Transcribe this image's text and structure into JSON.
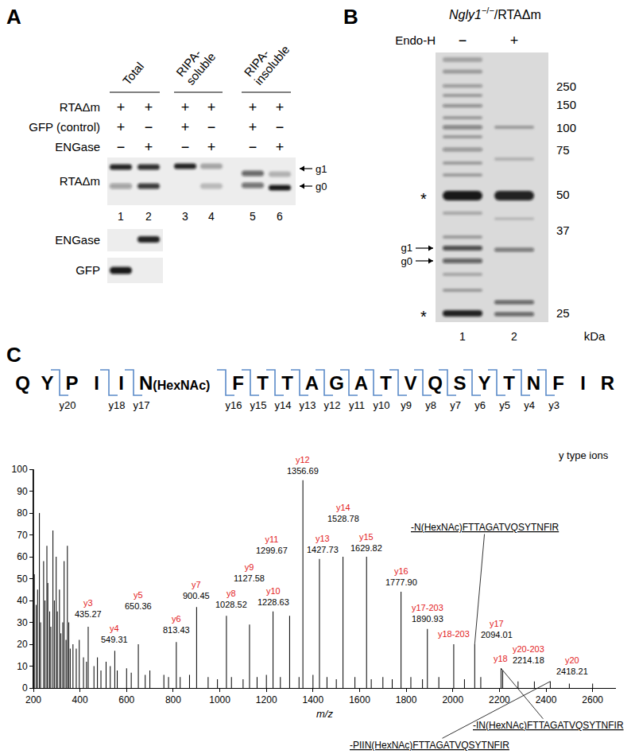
{
  "panels": {
    "A": {
      "label": "A",
      "groups": [
        "Total",
        "RIPA-soluble",
        "RIPA-insoluble"
      ],
      "rows": [
        {
          "label": "RTAΔm",
          "lanes": [
            "+",
            "+",
            "+",
            "+",
            "+",
            "+"
          ]
        },
        {
          "label": "GFP (control)",
          "lanes": [
            "+",
            "−",
            "+",
            "−",
            "+",
            "−"
          ]
        },
        {
          "label": "ENGase",
          "lanes": [
            "−",
            "+",
            "−",
            "+",
            "−",
            "+"
          ]
        }
      ],
      "blots": [
        "RTAΔm",
        "ENGase",
        "GFP"
      ],
      "band_labels": [
        "g1",
        "g0"
      ],
      "lanes": [
        1,
        2,
        3,
        4,
        5,
        6
      ]
    },
    "B": {
      "label": "B",
      "title": {
        "gene": "Ngly1",
        "genotype": "−/−",
        "construct": "/RTAΔm"
      },
      "treatment": "Endo-H",
      "treatment_lanes": [
        "−",
        "+"
      ],
      "markers": [
        250,
        150,
        100,
        75,
        50,
        37,
        25
      ],
      "marker_unit": "kDa",
      "band_labels": [
        "g1",
        "g0"
      ],
      "asterisks": [
        "*",
        "*"
      ],
      "lanes": [
        1,
        2
      ]
    },
    "C": {
      "label": "C",
      "sequence": [
        "Q",
        "Y",
        "P",
        "I",
        "I",
        "N(HexNAc)",
        "F",
        "T",
        "T",
        "A",
        "G",
        "A",
        "T",
        "V",
        "Q",
        "S",
        "Y",
        "T",
        "N",
        "F",
        "I",
        "R"
      ],
      "cleavage_labels": [
        null,
        "y20",
        null,
        "y18",
        "y17",
        "y16",
        "y15",
        "y14",
        "y13",
        "y12",
        "y11",
        "y10",
        "y9",
        "y8",
        "y7",
        "y6",
        "y5",
        "y4",
        "y3",
        null,
        null
      ]
    }
  },
  "chart_data": {
    "type": "stick",
    "x_label": "m/z",
    "xlim": [
      200,
      2700
    ],
    "xticks": [
      200,
      400,
      600,
      800,
      1000,
      1200,
      1400,
      1600,
      1800,
      2000,
      2200,
      2400,
      2600
    ],
    "ylim": [
      0,
      100
    ],
    "yticks": [
      0,
      10,
      20,
      30,
      40,
      50,
      60,
      70,
      80,
      90,
      100
    ],
    "grid": false,
    "peaks": [
      {
        "ion": "y3",
        "x": 435.27,
        "value": 28,
        "mass": "435.27"
      },
      {
        "ion": "y4",
        "x": 549.31,
        "value": 17,
        "mass": "549.31"
      },
      {
        "ion": "y5",
        "x": 650.36,
        "value": 20,
        "mass": "650.36"
      },
      {
        "ion": "y6",
        "x": 813.43,
        "value": 21,
        "mass": "813.43"
      },
      {
        "ion": "y7",
        "x": 900.45,
        "value": 37,
        "mass": "900.45"
      },
      {
        "ion": "y8",
        "x": 1028.52,
        "value": 33,
        "mass": "1028.52"
      },
      {
        "ion": "y9",
        "x": 1127.58,
        "value": 29,
        "mass": "1127.58"
      },
      {
        "ion": "y10",
        "x": 1228.63,
        "value": 35,
        "mass": "1228.63"
      },
      {
        "ion": "y11",
        "x": 1299.67,
        "value": 33,
        "mass": "1299.67"
      },
      {
        "ion": "y12",
        "x": 1356.69,
        "value": 95,
        "mass": "1356.69"
      },
      {
        "ion": "y13",
        "x": 1427.73,
        "value": 59,
        "mass": "1427.73"
      },
      {
        "ion": "y14",
        "x": 1528.78,
        "value": 60,
        "mass": "1528.78"
      },
      {
        "ion": "y15",
        "x": 1629.82,
        "value": 60,
        "mass": "1629.82"
      },
      {
        "ion": "y16",
        "x": 1777.9,
        "value": 44,
        "mass": "1777.90"
      },
      {
        "ion": "y17-203",
        "x": 1890.93,
        "value": 27,
        "mass": "1890.93"
      },
      {
        "ion": "y18-203",
        "x": 2004,
        "value": 20
      },
      {
        "ion": "y17",
        "x": 2094.01,
        "value": 20,
        "mass": "2094.01"
      },
      {
        "ion": "y18",
        "x": 2207,
        "value": 9
      },
      {
        "ion": "y20-203",
        "x": 2214.18,
        "value": 8,
        "mass": "2214.18"
      },
      {
        "ion": "y20",
        "x": 2418.21,
        "value": 3,
        "mass": "2418.21"
      }
    ],
    "background": {
      "x": [
        201,
        204,
        212,
        218,
        226,
        231,
        244,
        250,
        258,
        262,
        270,
        275,
        284,
        290,
        298,
        303,
        312,
        318,
        326,
        332,
        340,
        346,
        352,
        358,
        370,
        384,
        397,
        415,
        428,
        460,
        475,
        490,
        512,
        530,
        560,
        600,
        620,
        680,
        700,
        760,
        780,
        830,
        870,
        950,
        990,
        1050,
        1100,
        1160,
        1200,
        1260,
        1340,
        1400,
        1460,
        1500,
        1580,
        1650,
        1700,
        1740,
        1820,
        1870,
        1940,
        2050,
        2120,
        2280,
        2350,
        2500,
        2600
      ],
      "values": [
        100,
        52,
        38,
        45,
        80,
        30,
        58,
        40,
        65,
        48,
        35,
        28,
        72,
        40,
        60,
        35,
        45,
        25,
        30,
        58,
        22,
        65,
        30,
        18,
        20,
        18,
        22,
        14,
        12,
        10,
        14,
        8,
        12,
        10,
        8,
        9,
        7,
        6,
        8,
        6,
        5,
        5,
        6,
        5,
        4,
        5,
        4,
        5,
        6,
        5,
        5,
        6,
        5,
        4,
        5,
        4,
        5,
        4,
        5,
        4,
        5,
        4,
        5,
        3,
        3,
        2,
        2
      ]
    },
    "annotations": [
      "y type ions"
    ],
    "fragments": [
      {
        "text": "-N(HexNAc)FTTAGATVQSYTNFIR",
        "ion": "y17"
      },
      {
        "text": "-IN(HexNAc)FTTAGATVQSYTNFIR",
        "ion": "y18"
      },
      {
        "text": "-PIIN(HexNAc)FTTAGATVQSYTNFIR",
        "ion": "y20"
      }
    ]
  }
}
